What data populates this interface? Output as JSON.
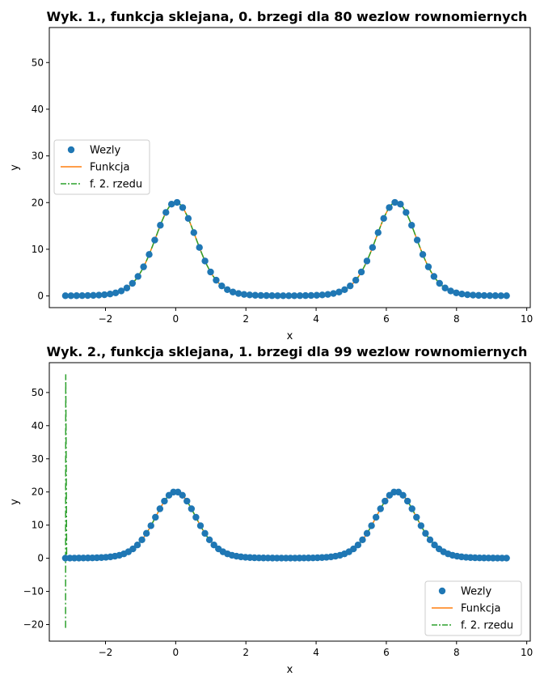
{
  "chart_data": [
    {
      "type": "line",
      "title": "Wyk. 1., funkcja sklejana, 0. brzegi dla 80 wezlow rownomiernych",
      "xlabel": "x",
      "ylabel": "y",
      "xlim": [
        -3.6,
        10.1
      ],
      "ylim": [
        -2.5,
        57.5
      ],
      "xticks": [
        -2,
        0,
        2,
        4,
        6,
        8,
        10
      ],
      "yticks": [
        0,
        10,
        20,
        30,
        40,
        50
      ],
      "function": "exp(3*cos(x)) on [-pi, 3*pi]",
      "nodes_count": 80,
      "legend_position": "center-left",
      "series": [
        {
          "name": "Wezly",
          "style": "markers",
          "color": "#1f77b4"
        },
        {
          "name": "Funkcja",
          "style": "solid",
          "color": "#ff7f0e"
        },
        {
          "name": "f. 2. rzedu",
          "style": "dashdot",
          "color": "#2ca02c"
        }
      ]
    },
    {
      "type": "line",
      "title": "Wyk. 2., funkcja sklejana, 1. brzegi dla 99 wezlow rownomiernych",
      "xlabel": "x",
      "ylabel": "y",
      "xlim": [
        -3.6,
        10.1
      ],
      "ylim": [
        -25,
        59
      ],
      "xticks": [
        -2,
        0,
        2,
        4,
        6,
        8,
        10
      ],
      "yticks": [
        -20,
        -10,
        0,
        10,
        20,
        30,
        40,
        50
      ],
      "function": "exp(3*cos(x)) on [-pi, 3*pi]",
      "nodes_count": 99,
      "spline_start_dip": -21,
      "legend_position": "lower-right",
      "series": [
        {
          "name": "Wezly",
          "style": "markers",
          "color": "#1f77b4"
        },
        {
          "name": "Funkcja",
          "style": "solid",
          "color": "#ff7f0e"
        },
        {
          "name": "f. 2. rzedu",
          "style": "dashdot",
          "color": "#2ca02c"
        }
      ]
    }
  ]
}
